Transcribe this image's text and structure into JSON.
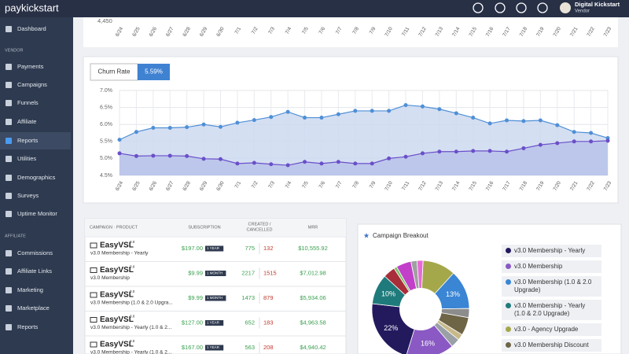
{
  "topbar": {
    "logo": "paykickstart",
    "user": "Digital Kickstart",
    "role": "Vendor"
  },
  "sidebar": {
    "items": [
      {
        "label": "Dashboard"
      },
      {
        "label": "VENDOR",
        "section": true
      },
      {
        "label": "Payments"
      },
      {
        "label": "Campaigns"
      },
      {
        "label": "Funnels"
      },
      {
        "label": "Affiliate"
      },
      {
        "label": "Reports",
        "active": true
      },
      {
        "label": "Utilities"
      },
      {
        "label": "Demographics"
      },
      {
        "label": "Surveys"
      },
      {
        "label": "Uptime Monitor"
      },
      {
        "label": "AFFILIATE",
        "section": true
      },
      {
        "label": "Commissions"
      },
      {
        "label": "Affiliate Links"
      },
      {
        "label": "Marketing"
      },
      {
        "label": "Marketplace"
      },
      {
        "label": "Reports"
      }
    ]
  },
  "top_chart": {
    "ytick": "4,450"
  },
  "chart_data": [
    {
      "type": "line",
      "label": "Churn Rate",
      "current": "5.59%",
      "categories": [
        "6/24",
        "6/25",
        "6/26",
        "6/27",
        "6/28",
        "6/29",
        "6/30",
        "7/1",
        "7/2",
        "7/3",
        "7/4",
        "7/5",
        "7/6",
        "7/7",
        "7/8",
        "7/9",
        "7/10",
        "7/11",
        "7/12",
        "7/13",
        "7/14",
        "7/15",
        "7/16",
        "7/17",
        "7/18",
        "7/19",
        "7/20",
        "7/21",
        "7/22",
        "7/23"
      ],
      "series": [
        {
          "color": "#4f8fd6",
          "fill": "#cdd9f0",
          "values": [
            5.55,
            5.78,
            5.9,
            5.9,
            5.92,
            6.0,
            5.93,
            6.05,
            6.13,
            6.22,
            6.37,
            6.2,
            6.2,
            6.3,
            6.4,
            6.4,
            6.4,
            6.57,
            6.53,
            6.45,
            6.33,
            6.2,
            6.03,
            6.12,
            6.1,
            6.12,
            5.98,
            5.78,
            5.75,
            5.6
          ]
        },
        {
          "color": "#6a4fc9",
          "fill": "#b8c3ea",
          "values": [
            5.15,
            5.07,
            5.08,
            5.08,
            5.07,
            4.99,
            4.98,
            4.85,
            4.87,
            4.83,
            4.8,
            4.9,
            4.85,
            4.9,
            4.85,
            4.85,
            5.0,
            5.05,
            5.15,
            5.2,
            5.2,
            5.22,
            5.22,
            5.2,
            5.3,
            5.4,
            5.45,
            5.5,
            5.5,
            5.52
          ]
        }
      ],
      "ylim": [
        4.5,
        7.0
      ],
      "yticks": [
        {
          "value": 4.5,
          "label": "4.5%"
        },
        {
          "value": 5.0,
          "label": "5.0%"
        },
        {
          "value": 5.5,
          "label": "5.5%"
        },
        {
          "value": 6.0,
          "label": "6.0%"
        },
        {
          "value": 6.5,
          "label": "6.5%"
        },
        {
          "value": 7.0,
          "label": "7.0%"
        }
      ],
      "grid": true
    },
    {
      "type": "pie",
      "title": "Campaign Breakout",
      "values": [
        11,
        13,
        3,
        6,
        2,
        3,
        16,
        22,
        10,
        4,
        1,
        5,
        2,
        2
      ],
      "colors": [
        "#a5a84a",
        "#3a85d4",
        "#8c8c8c",
        "#6e6446",
        "#c7b98a",
        "#9aa0a6",
        "#8a59c4",
        "#231a5e",
        "#1f7b7b",
        "#a82e3a",
        "#7bc26a",
        "#c23fc9",
        "#a0a0a0",
        "#e66ad6"
      ],
      "value_labels": [
        null,
        "13%",
        null,
        null,
        null,
        null,
        "16%",
        "22%",
        "10%",
        null,
        null,
        null,
        null,
        null
      ],
      "legend": [
        {
          "name": "v3.0 Membership - Yearly",
          "color": "#231a5e"
        },
        {
          "name": "v3.0 Membership",
          "color": "#8a59c4"
        },
        {
          "name": "v3.0 Membership (1.0 & 2.0 Upgrade)",
          "color": "#3a85d4"
        },
        {
          "name": "v3.0 Membership - Yearly (1.0 & 2.0 Upgrade)",
          "color": "#1f7b7b"
        },
        {
          "name": "v3.0 - Agency Upgrade",
          "color": "#a5a84a"
        },
        {
          "name": "v3.0 Membership Discount",
          "color": "#6e6446"
        }
      ]
    }
  ],
  "table": {
    "headers": [
      "CAMPAIGN · PRODUCT",
      "SUBSCRIPTION",
      "CREATED /",
      "CANCELLED",
      "MRR"
    ],
    "rows": [
      {
        "brand": "EasyVSL",
        "version": "3.0",
        "product": "v3.0 Membership - Yearly",
        "price": "$197.00",
        "period": "1 YEAR",
        "created": "775",
        "cancelled": "132",
        "mrr": "$10,555.92"
      },
      {
        "brand": "EasyVSL",
        "version": "3.0",
        "product": "v3.0 Membership",
        "price": "$9.99",
        "period": "1 MONTH",
        "created": "2217",
        "cancelled": "1515",
        "mrr": "$7,012.98"
      },
      {
        "brand": "EasyVSL",
        "version": "3.0",
        "product": "v3.0 Membership (1.0 & 2.0 Upgra...",
        "price": "$9.99",
        "period": "1 MONTH",
        "created": "1473",
        "cancelled": "879",
        "mrr": "$5,934.06"
      },
      {
        "brand": "EasyVSL",
        "version": "3.0",
        "product": "v3.0 Membership - Yearly (1.0 & 2...",
        "price": "$127.00",
        "period": "1 YEAR",
        "created": "652",
        "cancelled": "183",
        "mrr": "$4,963.58"
      },
      {
        "brand": "EasyVSL",
        "version": "3.0",
        "product": "v3.0 Membership - Yearly (1.0 & 2...",
        "price": "$167.00",
        "period": "1 YEAR",
        "created": "563",
        "cancelled": "208",
        "mrr": "$4,940.42"
      }
    ]
  }
}
